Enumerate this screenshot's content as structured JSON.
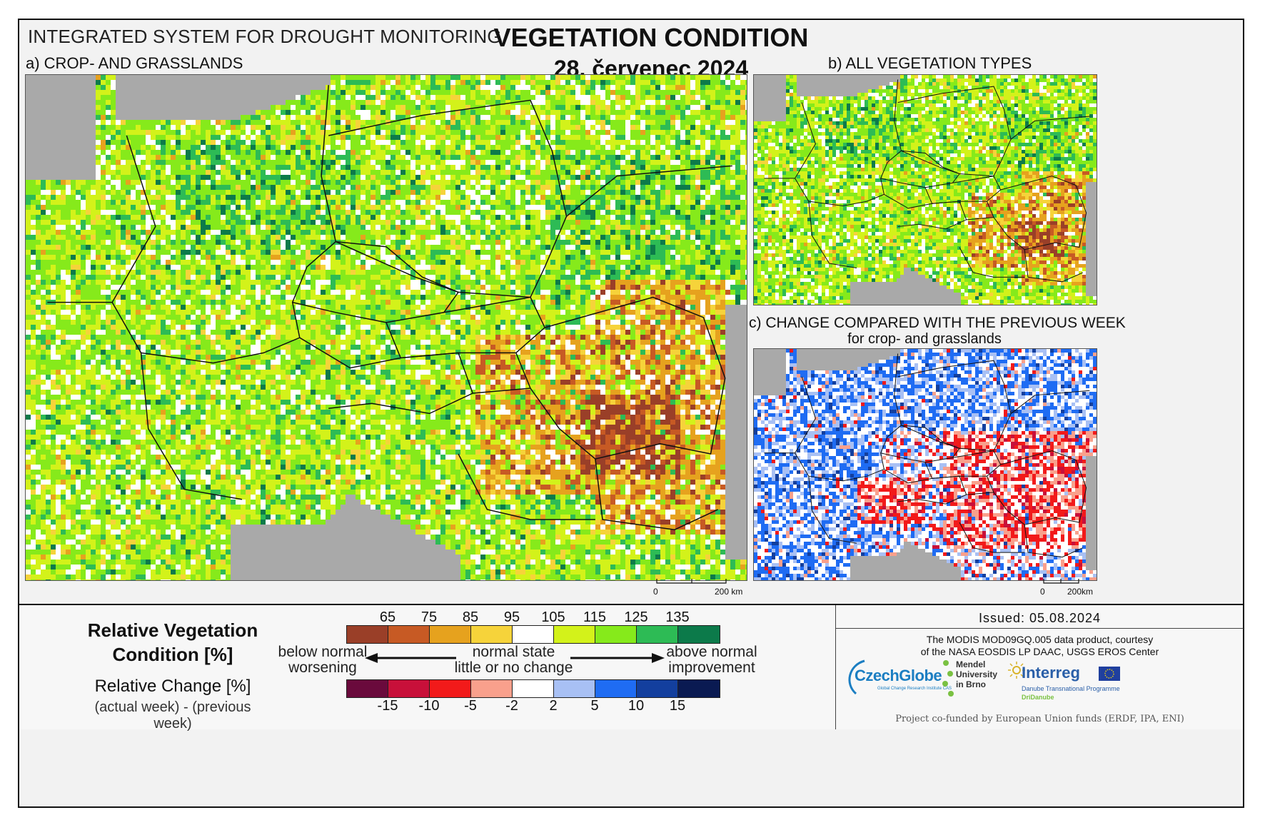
{
  "header": {
    "system": "INTEGRATED SYSTEM FOR DROUGHT MONITORING",
    "title": "VEGETATION CONDITION",
    "date": "28. červenec 2024"
  },
  "panels": {
    "a_label": "a) CROP- AND GRASSLANDS",
    "b_label": "b) ALL VEGETATION TYPES",
    "c_label": "c) CHANGE COMPARED WITH THE PREVIOUS WEEK",
    "c_sublabel": "for crop- and grasslands"
  },
  "scalebar": {
    "zero": "0",
    "main_end": "200 km",
    "small_end": "200km"
  },
  "legend": {
    "rvc_title": "Relative Vegetation Condition [%]",
    "rc_title": "Relative Change [%]",
    "rc_sub": "(actual week) - (previous week)",
    "top_ticks": [
      "65",
      "75",
      "85",
      "95",
      "105",
      "115",
      "125",
      "135"
    ],
    "top_colors": [
      "#9a3f28",
      "#c75a24",
      "#e6a21e",
      "#f6d33a",
      "#ffffff",
      "#d3f21a",
      "#86ea1b",
      "#2dbb55",
      "#0c7a4a"
    ],
    "bottom_ticks": [
      "-15",
      "-10",
      "-5",
      "-2",
      "2",
      "5",
      "10",
      "15"
    ],
    "bottom_colors": [
      "#6a0a3c",
      "#c8103a",
      "#f21a1a",
      "#f9a08c",
      "#ffffff",
      "#a8c0f4",
      "#1f6cf3",
      "#133f9e",
      "#0a1a52"
    ],
    "below_normal": "below normal",
    "worsening": "worsening",
    "normal_state": "normal state",
    "little_change": "little or no change",
    "above_normal": "above normal",
    "improvement": "improvement"
  },
  "info": {
    "issued": "Issued: 05.08.2024",
    "courtesy_1": "The MODIS MOD09GQ.005 data product, courtesy",
    "courtesy_2": "of the NASA EOSDIS LP DAAC, USGS EROS Center",
    "czechglobe": "CzechGlobe",
    "czechglobe_sub": "Global Change Research Institute CAS",
    "mendel_1": "Mendel",
    "mendel_2": "University",
    "mendel_3": "in Brno",
    "interreg": "Interreg",
    "interreg_sub": "Danube Transnational Programme",
    "dridanube": "DriDanube",
    "funded": "Project co-funded by European Union funds (ERDF, IPA, ENI)"
  }
}
